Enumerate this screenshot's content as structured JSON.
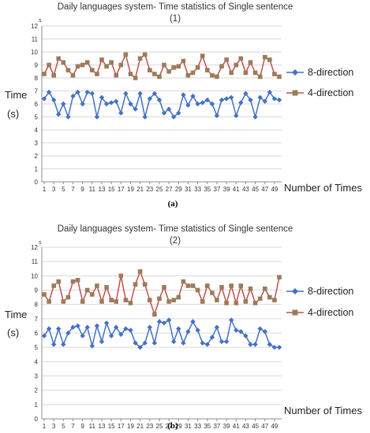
{
  "colors": {
    "series_8": "#4472c4",
    "series_4": "#c0504d",
    "marker_4": "#9c7b5a",
    "grid": "#d9d9d9"
  },
  "chart_data": [
    {
      "type": "line",
      "title_line1": "Daily languages system- Time statistics of Single sentence",
      "title_line2": "(1)",
      "ylabel_top": "Time",
      "ylabel_bottom": "(s)",
      "yunit": "s",
      "xlabel": "Number of Times",
      "caption": "(a)",
      "ylim": [
        0,
        12
      ],
      "yticks": [
        0,
        1,
        2,
        3,
        4,
        5,
        6,
        7,
        8,
        9,
        10,
        11,
        12
      ],
      "xlim": [
        1,
        50
      ],
      "xticks": [
        1,
        3,
        5,
        7,
        9,
        11,
        13,
        15,
        17,
        19,
        21,
        23,
        25,
        27,
        29,
        31,
        33,
        35,
        37,
        39,
        41,
        43,
        45,
        47,
        49
      ],
      "grid": true,
      "legend_position": "right",
      "series": [
        {
          "name": "8-direction",
          "values": [
            6.4,
            6.9,
            6.3,
            5.2,
            6.0,
            5.0,
            6.6,
            6.9,
            6.0,
            6.9,
            6.8,
            5.0,
            6.5,
            6.0,
            6.1,
            6.2,
            5.3,
            6.8,
            6.0,
            5.6,
            6.8,
            5.0,
            6.4,
            6.8,
            6.3,
            5.3,
            5.6,
            5.0,
            5.3,
            6.7,
            5.9,
            6.6,
            6.0,
            6.1,
            6.3,
            6.0,
            5.1,
            6.3,
            6.4,
            6.5,
            5.1,
            6.1,
            6.8,
            6.3,
            5.0,
            6.5,
            6.2,
            6.9,
            6.4,
            6.3
          ]
        },
        {
          "name": "4-direction",
          "values": [
            8.3,
            9.0,
            8.2,
            9.5,
            9.2,
            8.6,
            8.2,
            8.9,
            9.0,
            9.2,
            8.6,
            8.3,
            9.4,
            8.9,
            9.2,
            8.2,
            9.0,
            9.8,
            8.3,
            8.0,
            9.5,
            9.8,
            8.6,
            8.3,
            8.1,
            9.0,
            8.5,
            8.8,
            8.9,
            9.3,
            8.2,
            8.4,
            8.8,
            9.7,
            8.6,
            8.2,
            8.1,
            8.9,
            9.4,
            8.4,
            9.0,
            9.5,
            8.4,
            9.2,
            8.4,
            8.1,
            9.6,
            9.4,
            8.3,
            8.1
          ]
        }
      ]
    },
    {
      "type": "line",
      "title_line1": "Daily languages system- Time statistics of Single sentence",
      "title_line2": "(2)",
      "ylabel_top": "Time",
      "ylabel_bottom": "(s)",
      "yunit": "s",
      "xlabel": "Number of Times",
      "caption": "(b)",
      "ylim": [
        0,
        12
      ],
      "yticks": [
        0,
        1,
        2,
        3,
        4,
        5,
        6,
        7,
        8,
        9,
        10,
        11,
        12
      ],
      "xlim": [
        1,
        50
      ],
      "xticks": [
        1,
        3,
        5,
        7,
        9,
        11,
        13,
        15,
        17,
        19,
        21,
        23,
        25,
        27,
        29,
        31,
        33,
        35,
        37,
        39,
        41,
        43,
        45,
        47,
        49
      ],
      "grid": true,
      "legend_position": "right",
      "series": [
        {
          "name": "8-direction",
          "values": [
            5.8,
            6.3,
            5.2,
            6.3,
            5.2,
            6.0,
            6.4,
            6.5,
            5.8,
            6.4,
            5.1,
            6.5,
            5.4,
            6.7,
            5.8,
            6.4,
            5.9,
            6.3,
            6.2,
            5.3,
            5.0,
            5.3,
            6.4,
            5.3,
            6.8,
            6.7,
            6.9,
            5.4,
            6.3,
            5.3,
            6.1,
            6.8,
            6.2,
            5.3,
            5.2,
            5.7,
            6.4,
            5.4,
            5.4,
            6.9,
            6.2,
            6.1,
            5.8,
            5.2,
            5.2,
            6.3,
            6.1,
            5.2,
            5.0,
            5.0
          ]
        },
        {
          "name": "4-direction",
          "values": [
            8.7,
            8.2,
            9.3,
            9.6,
            8.2,
            8.5,
            9.6,
            9.7,
            8.2,
            9.0,
            8.7,
            9.3,
            8.2,
            9.2,
            8.3,
            8.2,
            10.0,
            8.3,
            8.1,
            9.4,
            10.3,
            9.4,
            8.3,
            7.3,
            8.4,
            9.2,
            8.2,
            8.3,
            8.5,
            9.6,
            9.3,
            9.3,
            9.0,
            8.2,
            9.3,
            8.8,
            8.3,
            9.2,
            8.1,
            9.3,
            8.1,
            9.3,
            8.2,
            9.1,
            8.1,
            8.4,
            9.1,
            8.5,
            8.3,
            9.9
          ]
        }
      ]
    }
  ]
}
